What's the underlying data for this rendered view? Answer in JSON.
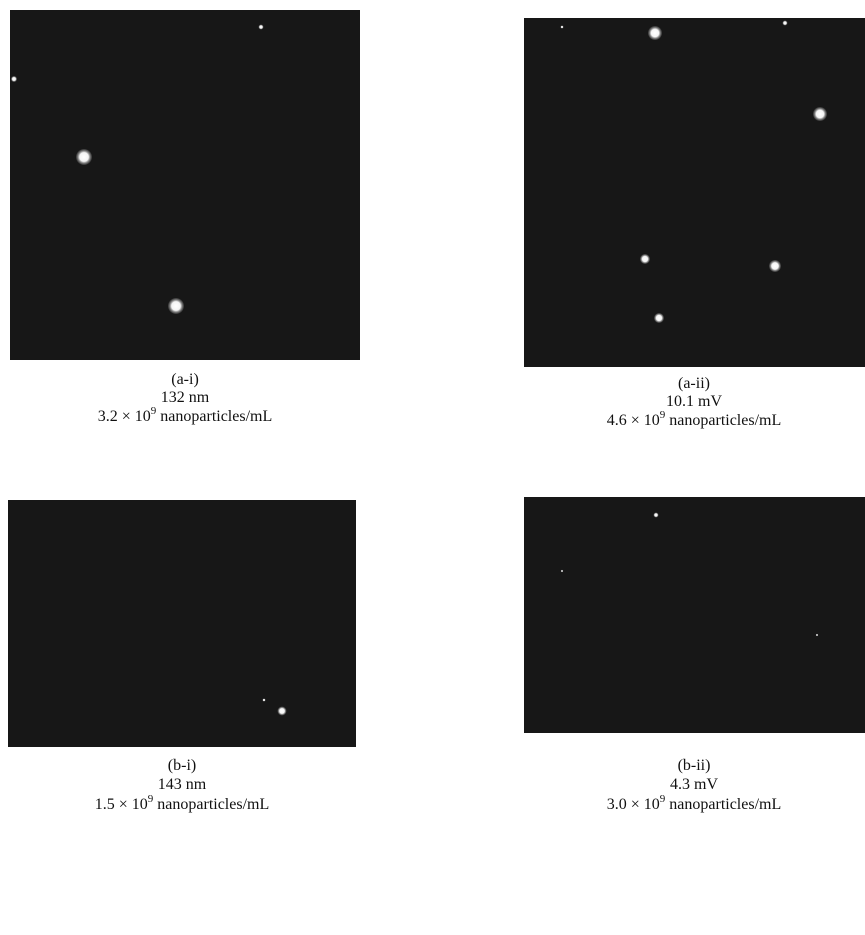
{
  "panels": [
    {
      "label": "(a-i)",
      "measure": "132 nm",
      "concentration": {
        "mantissa": "3.2 × 10",
        "exponent": "9",
        "unit": "nanoparticles/mL"
      }
    },
    {
      "label": "(a-ii)",
      "measure": "10.1 mV",
      "concentration": {
        "mantissa": "4.6 × 10",
        "exponent": "9",
        "unit": "nanoparticles/mL"
      }
    },
    {
      "label": "(b-i)",
      "measure": "143 nm",
      "concentration": {
        "mantissa": "1.5 × 10",
        "exponent": "9",
        "unit": "nanoparticles/mL"
      }
    },
    {
      "label": "(b-ii)",
      "measure": "4.3 mV",
      "concentration": {
        "mantissa": "3.0 × 10",
        "exponent": "9",
        "unit": "nanoparticles/mL"
      }
    }
  ]
}
